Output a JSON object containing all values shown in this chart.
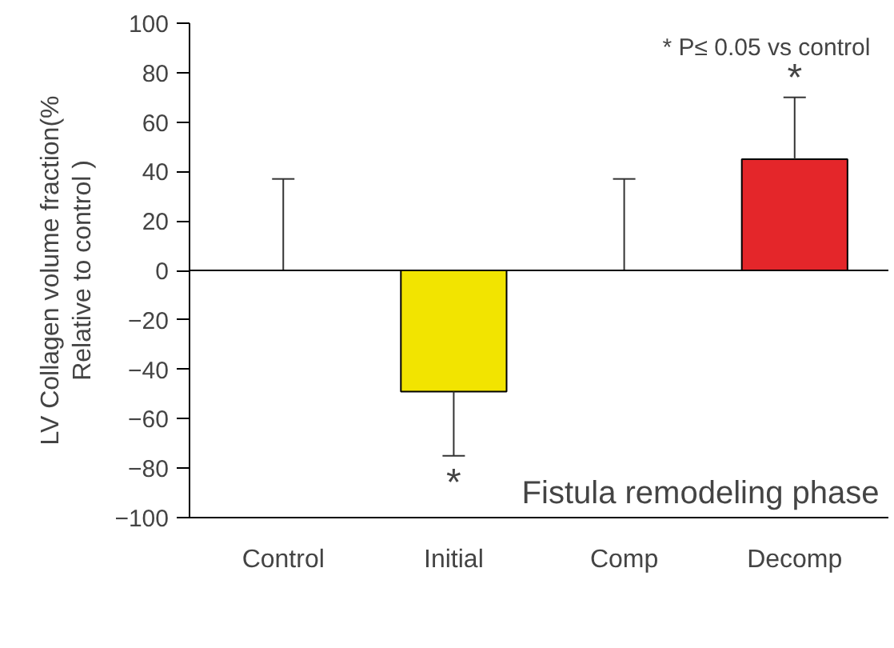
{
  "chart_data": {
    "type": "bar",
    "ylabel": "LV Collagen volume fraction(%\nRelative to control )",
    "xlabel": "Fistula  remodeling  phase",
    "categories": [
      "Control",
      "Initial",
      "Comp",
      "Decomp"
    ],
    "values": [
      0,
      -49,
      0,
      45
    ],
    "colors": [
      "#000000",
      "#f2e400",
      "#000000",
      "#e4262a"
    ],
    "errors": [
      [
        0,
        37
      ],
      [
        -75,
        -49
      ],
      [
        0,
        37
      ],
      [
        45,
        70
      ]
    ],
    "ylim": [
      -100,
      100
    ],
    "yticks": [
      -100,
      -80,
      -60,
      -40,
      -20,
      0,
      20,
      40,
      60,
      80,
      100
    ],
    "ref_lines": [
      {
        "axis": "y",
        "value": 0
      }
    ],
    "annotations": [
      "* P≤ 0.05 vs control",
      "*",
      "*"
    ],
    "grid": false
  }
}
